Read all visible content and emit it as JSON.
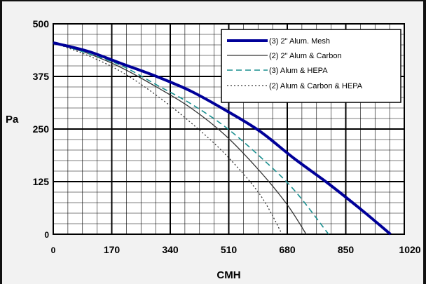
{
  "chart_data": {
    "type": "line",
    "title": "",
    "xlabel": "CMH",
    "ylabel": "Pa",
    "xlim": [
      0,
      1020
    ],
    "ylim": [
      0,
      500
    ],
    "x_ticks": [
      0,
      170,
      340,
      510,
      680,
      850,
      1020
    ],
    "y_ticks": [
      0,
      125,
      250,
      375,
      500
    ],
    "grid": true,
    "legend_position": "top-right",
    "series": [
      {
        "name": "(3) 2\" Alum. Mesh",
        "color": "#000099",
        "style": "solid-thick",
        "x": [
          0,
          100,
          200,
          300,
          400,
          500,
          600,
          700,
          800,
          900,
          980
        ],
        "y": [
          455,
          435,
          405,
          375,
          340,
          295,
          245,
          180,
          120,
          55,
          0
        ]
      },
      {
        "name": "(2) 2\" Alum & Carbon",
        "color": "#333333",
        "style": "solid-thin",
        "x": [
          0,
          100,
          200,
          300,
          400,
          500,
          600,
          680,
          735
        ],
        "y": [
          455,
          430,
          395,
          350,
          300,
          235,
          150,
          70,
          0
        ]
      },
      {
        "name": "(3) Alum & HEPA",
        "color": "#1a8f8f",
        "style": "dashed",
        "x": [
          0,
          100,
          200,
          300,
          400,
          500,
          600,
          700,
          800
        ],
        "y": [
          455,
          430,
          400,
          355,
          310,
          255,
          185,
          105,
          0
        ]
      },
      {
        "name": "(2) Alum & Carbon & HEPA",
        "color": "#333333",
        "style": "dotted",
        "x": [
          0,
          100,
          200,
          300,
          400,
          500,
          600,
          665
        ],
        "y": [
          455,
          425,
          385,
          330,
          265,
          190,
          95,
          0
        ]
      }
    ]
  }
}
